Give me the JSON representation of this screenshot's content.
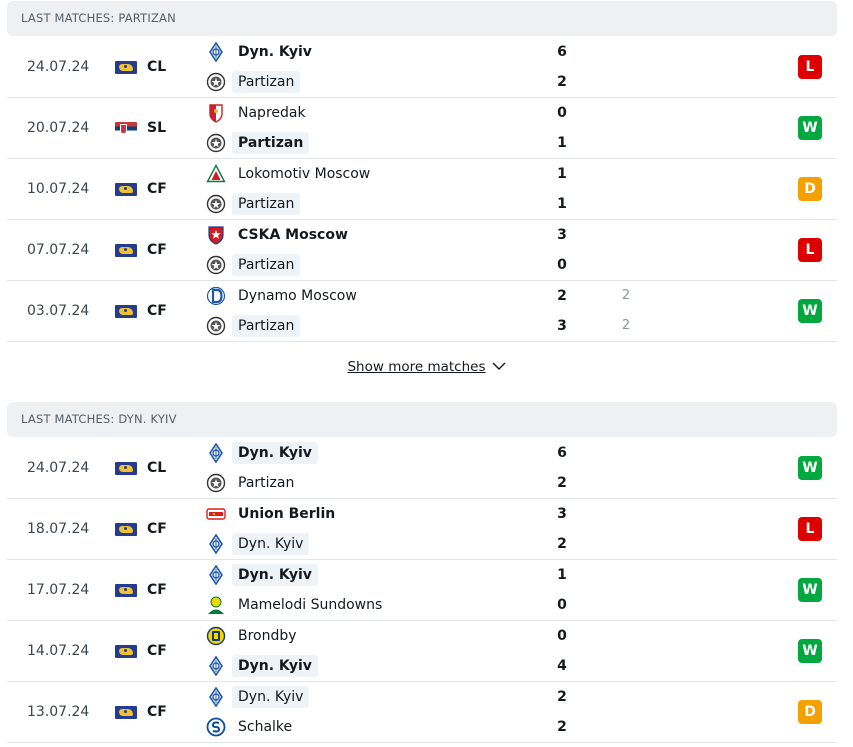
{
  "sections": [
    {
      "title": "LAST MATCHES: PARTIZAN",
      "matches": [
        {
          "date": "24.07.24",
          "flag": "world-flag-icon",
          "competition": "CL",
          "home": {
            "name": "Dyn. Kyiv",
            "logo": "dynamo-kyiv-logo-icon",
            "bold": true,
            "highlight": false,
            "score": "6"
          },
          "away": {
            "name": "Partizan",
            "logo": "partizan-logo-icon",
            "bold": false,
            "highlight": true,
            "score": "2"
          },
          "result": "L"
        },
        {
          "date": "20.07.24",
          "flag": "serbia-flag-icon",
          "competition": "SL",
          "home": {
            "name": "Napredak",
            "logo": "napredak-logo-icon",
            "bold": false,
            "highlight": false,
            "score": "0"
          },
          "away": {
            "name": "Partizan",
            "logo": "partizan-logo-icon",
            "bold": true,
            "highlight": true,
            "score": "1"
          },
          "result": "W"
        },
        {
          "date": "10.07.24",
          "flag": "world-flag-icon",
          "competition": "CF",
          "home": {
            "name": "Lokomotiv Moscow",
            "logo": "lokomotiv-logo-icon",
            "bold": false,
            "highlight": false,
            "score": "1"
          },
          "away": {
            "name": "Partizan",
            "logo": "partizan-logo-icon",
            "bold": false,
            "highlight": true,
            "score": "1"
          },
          "result": "D"
        },
        {
          "date": "07.07.24",
          "flag": "world-flag-icon",
          "competition": "CF",
          "home": {
            "name": "CSKA Moscow",
            "logo": "cska-logo-icon",
            "bold": true,
            "highlight": false,
            "score": "3"
          },
          "away": {
            "name": "Partizan",
            "logo": "partizan-logo-icon",
            "bold": false,
            "highlight": true,
            "score": "0"
          },
          "result": "L"
        },
        {
          "date": "03.07.24",
          "flag": "world-flag-icon",
          "competition": "CF",
          "home": {
            "name": "Dynamo Moscow",
            "logo": "dynamo-moscow-logo-icon",
            "bold": false,
            "highlight": false,
            "score": "2",
            "pen": "2"
          },
          "away": {
            "name": "Partizan",
            "logo": "partizan-logo-icon",
            "bold": false,
            "highlight": true,
            "score": "3",
            "pen": "2"
          },
          "result": "W"
        }
      ]
    },
    {
      "title": "LAST MATCHES: DYN. KYIV",
      "matches": [
        {
          "date": "24.07.24",
          "flag": "world-flag-icon",
          "competition": "CL",
          "home": {
            "name": "Dyn. Kyiv",
            "logo": "dynamo-kyiv-logo-icon",
            "bold": true,
            "highlight": true,
            "score": "6"
          },
          "away": {
            "name": "Partizan",
            "logo": "partizan-logo-icon",
            "bold": false,
            "highlight": false,
            "score": "2"
          },
          "result": "W"
        },
        {
          "date": "18.07.24",
          "flag": "world-flag-icon",
          "competition": "CF",
          "home": {
            "name": "Union Berlin",
            "logo": "union-berlin-logo-icon",
            "bold": true,
            "highlight": false,
            "score": "3"
          },
          "away": {
            "name": "Dyn. Kyiv",
            "logo": "dynamo-kyiv-logo-icon",
            "bold": false,
            "highlight": true,
            "score": "2"
          },
          "result": "L"
        },
        {
          "date": "17.07.24",
          "flag": "world-flag-icon",
          "competition": "CF",
          "home": {
            "name": "Dyn. Kyiv",
            "logo": "dynamo-kyiv-logo-icon",
            "bold": true,
            "highlight": true,
            "score": "1"
          },
          "away": {
            "name": "Mamelodi Sundowns",
            "logo": "mamelodi-sundowns-logo-icon",
            "bold": false,
            "highlight": false,
            "score": "0"
          },
          "result": "W"
        },
        {
          "date": "14.07.24",
          "flag": "world-flag-icon",
          "competition": "CF",
          "home": {
            "name": "Brondby",
            "logo": "brondby-logo-icon",
            "bold": false,
            "highlight": false,
            "score": "0"
          },
          "away": {
            "name": "Dyn. Kyiv",
            "logo": "dynamo-kyiv-logo-icon",
            "bold": true,
            "highlight": true,
            "score": "4"
          },
          "result": "W"
        },
        {
          "date": "13.07.24",
          "flag": "world-flag-icon",
          "competition": "CF",
          "home": {
            "name": "Dyn. Kyiv",
            "logo": "dynamo-kyiv-logo-icon",
            "bold": false,
            "highlight": true,
            "score": "2"
          },
          "away": {
            "name": "Schalke",
            "logo": "schalke-logo-icon",
            "bold": false,
            "highlight": false,
            "score": "2"
          },
          "result": "D"
        }
      ]
    }
  ],
  "show_more": {
    "label": "Show more matches",
    "icon": "chevron-down-icon"
  },
  "colors": {
    "loss": "#dc0000",
    "win": "#00a83f",
    "draw": "#f3a000",
    "header_bg": "#eef0f2",
    "highlight_bg": "#eef3f8"
  }
}
